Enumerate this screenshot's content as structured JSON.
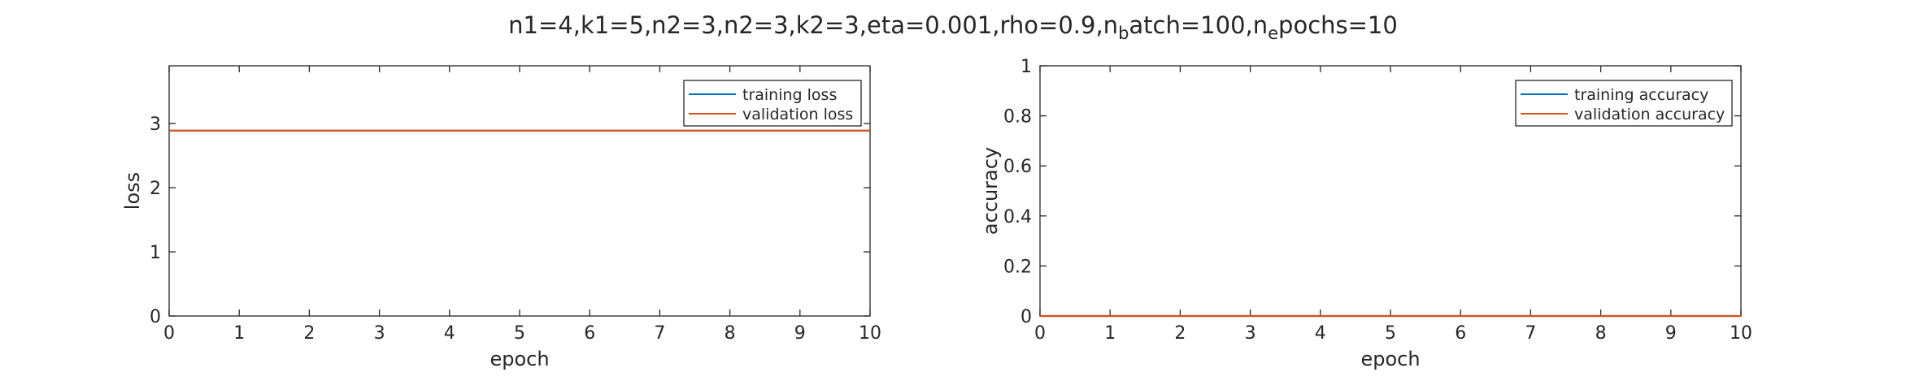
{
  "figure": {
    "title_parts": [
      {
        "text": "n1=4,k1=5,n2=3,n2=3,k2=3,eta=0.001,rho=0.9,n",
        "sub": false
      },
      {
        "text": "b",
        "sub": true
      },
      {
        "text": "atch=100,n",
        "sub": false
      },
      {
        "text": "e",
        "sub": true
      },
      {
        "text": "pochs=10",
        "sub": false
      }
    ]
  },
  "chart_data": [
    {
      "type": "line",
      "xlabel": "epoch",
      "ylabel": "loss",
      "xlim": [
        0,
        10
      ],
      "ylim": [
        0,
        3.9
      ],
      "xticks": [
        "0",
        "1",
        "2",
        "3",
        "4",
        "5",
        "6",
        "7",
        "8",
        "9",
        "10"
      ],
      "yticks": [
        "0",
        "1",
        "2",
        "3"
      ],
      "grid": false,
      "legend_position": "top-right",
      "series": [
        {
          "name": "training loss",
          "color": "#0072BD",
          "x": [
            0,
            1,
            2,
            3,
            4,
            5,
            6,
            7,
            8,
            9,
            10
          ],
          "y": [
            2.89,
            2.89,
            2.89,
            2.89,
            2.89,
            2.89,
            2.89,
            2.89,
            2.89,
            2.89,
            2.89
          ]
        },
        {
          "name": "validation loss",
          "color": "#D95319",
          "x": [
            0,
            1,
            2,
            3,
            4,
            5,
            6,
            7,
            8,
            9,
            10
          ],
          "y": [
            2.89,
            2.89,
            2.89,
            2.89,
            2.89,
            2.89,
            2.89,
            2.89,
            2.89,
            2.89,
            2.89
          ]
        }
      ]
    },
    {
      "type": "line",
      "xlabel": "epoch",
      "ylabel": "accuracy",
      "xlim": [
        0,
        10
      ],
      "ylim": [
        0,
        1
      ],
      "xticks": [
        "0",
        "1",
        "2",
        "3",
        "4",
        "5",
        "6",
        "7",
        "8",
        "9",
        "10"
      ],
      "yticks": [
        "0",
        "0.2",
        "0.4",
        "0.6",
        "0.8",
        "1"
      ],
      "grid": false,
      "legend_position": "top-right",
      "series": [
        {
          "name": "training accuracy",
          "color": "#0072BD",
          "x": [
            0,
            1,
            2,
            3,
            4,
            5,
            6,
            7,
            8,
            9,
            10
          ],
          "y": [
            0,
            0,
            0,
            0,
            0,
            0,
            0,
            0,
            0,
            0,
            0
          ]
        },
        {
          "name": "validation accuracy",
          "color": "#D95319",
          "x": [
            0,
            1,
            2,
            3,
            4,
            5,
            6,
            7,
            8,
            9,
            10
          ],
          "y": [
            0,
            0,
            0,
            0,
            0,
            0,
            0,
            0,
            0,
            0,
            0
          ]
        }
      ]
    }
  ]
}
